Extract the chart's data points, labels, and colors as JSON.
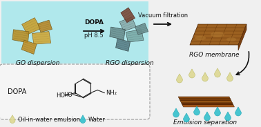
{
  "bg_color": "#f0f0f0",
  "cyan_bg": "#b0e8ec",
  "labels": {
    "go_dispersion": "GO dispersion",
    "rgo_dispersion": "RGO dispersion",
    "rgo_membrane": "RGO membrane",
    "emulsion_separation": "Emulsion separation",
    "dopa_label": "DOPA",
    "dopa_arrow_text1": "DOPA",
    "dopa_arrow_text2": "pH 8.5",
    "vacuum_text": "Vacuum filtration",
    "oil_label": "Oil-in-water emulsion",
    "water_label": "Water"
  },
  "colors": {
    "arrow": "#111111",
    "dashed_box": "#999999",
    "dashed_box_fill": "#f5f5f5",
    "oil_drop": "#ddd890",
    "water_drop": "#30c0cc",
    "drop_outline_oil": "#b8b860",
    "drop_outline_water": "#18a0b0",
    "text_color": "#111111",
    "go_color1": "#c8a030",
    "go_color2": "#b09030",
    "go_color3": "#d8b040",
    "go_edge": "#806020",
    "rgo_color1": "#8aacac",
    "rgo_color2": "#6a9090",
    "rgo_color3": "#4a7070",
    "rgo_dark": "#6a4030",
    "rgo_edge": "#405050",
    "mem_color1": "#9b6020",
    "mem_color2": "#7a4810",
    "mem_color3": "#b07030",
    "mem_edge": "#4a2000",
    "struct_color": "#222222"
  },
  "fontsizes": {
    "label": 6.5,
    "arrow_text": 6.5,
    "dopa_label": 7.0,
    "structure": 6.0,
    "legend": 6.0
  }
}
